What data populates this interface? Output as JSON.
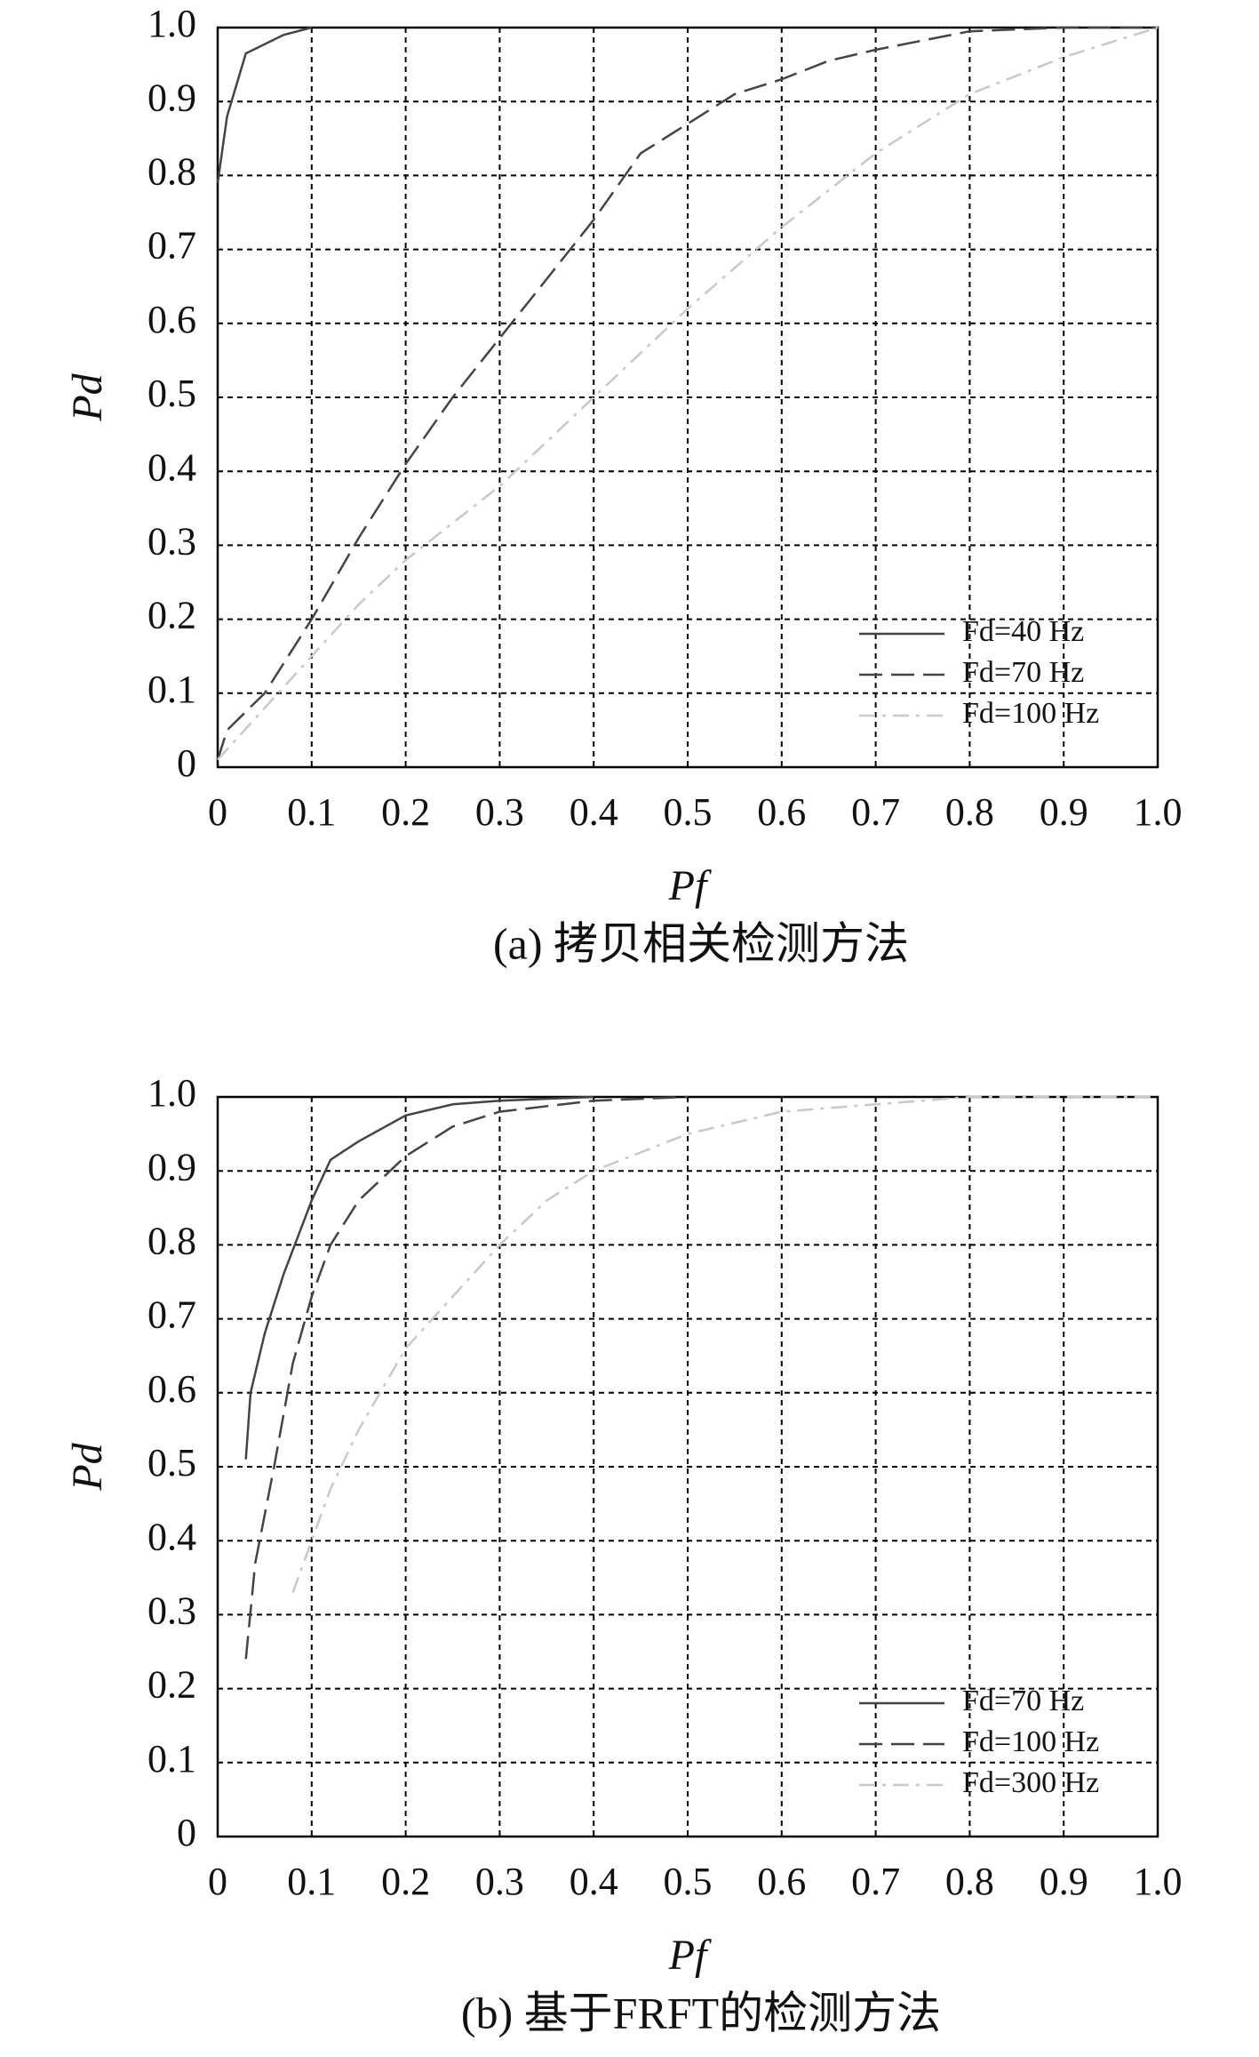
{
  "chart_data": [
    {
      "type": "line",
      "caption": "(a) 拷贝相关检测方法",
      "x_label": "Pf",
      "y_label": "Pd",
      "xlim": [
        0,
        1
      ],
      "ylim": [
        0,
        1
      ],
      "xticks": [
        0,
        0.1,
        0.2,
        0.3,
        0.4,
        0.5,
        0.6,
        0.7,
        0.8,
        0.9,
        {
          "value": 1,
          "label": "1.0"
        }
      ],
      "yticks": [
        0,
        0.1,
        0.2,
        0.3,
        0.4,
        0.5,
        0.6,
        0.7,
        0.8,
        0.9,
        {
          "value": 1,
          "label": "1.0"
        }
      ],
      "grid": true,
      "legend": "lower right",
      "series": [
        {
          "name": "Fd=40 Hz",
          "color": "#444444",
          "dash": "solid",
          "x": [
            0,
            0.01,
            0.03,
            0.07,
            0.1
          ],
          "values": [
            0.79,
            0.88,
            0.965,
            0.99,
            1.0
          ]
        },
        {
          "name": "Fd=70 Hz",
          "color": "#444444",
          "dash": "dashed",
          "x": [
            0,
            0.01,
            0.05,
            0.1,
            0.15,
            0.2,
            0.25,
            0.3,
            0.35,
            0.4,
            0.45,
            0.5,
            0.55,
            0.6,
            0.65,
            0.7,
            0.8,
            0.9,
            1.0
          ],
          "values": [
            0.01,
            0.05,
            0.1,
            0.2,
            0.31,
            0.41,
            0.5,
            0.58,
            0.66,
            0.74,
            0.83,
            0.87,
            0.91,
            0.93,
            0.955,
            0.97,
            0.995,
            1.0,
            1.0
          ]
        },
        {
          "name": "Fd=100 Hz",
          "color": "#c8c8c8",
          "dash": "dashdot",
          "x": [
            0,
            0.05,
            0.1,
            0.15,
            0.2,
            0.25,
            0.3,
            0.35,
            0.4,
            0.5,
            0.6,
            0.7,
            0.8,
            0.9,
            1.0
          ],
          "values": [
            0.01,
            0.08,
            0.15,
            0.22,
            0.28,
            0.33,
            0.38,
            0.44,
            0.5,
            0.62,
            0.73,
            0.83,
            0.91,
            0.96,
            1.0
          ]
        }
      ]
    },
    {
      "type": "line",
      "caption": "(b) 基于FRFT的检测方法",
      "x_label": "Pf",
      "y_label": "Pd",
      "xlim": [
        0,
        1
      ],
      "ylim": [
        0,
        1
      ],
      "xticks": [
        0,
        0.1,
        0.2,
        0.3,
        0.4,
        0.5,
        0.6,
        0.7,
        0.8,
        0.9,
        {
          "value": 1,
          "label": "1.0"
        }
      ],
      "yticks": [
        0,
        0.1,
        0.2,
        0.3,
        0.4,
        0.5,
        0.6,
        0.7,
        0.8,
        0.9,
        {
          "value": 1,
          "label": "1.0"
        }
      ],
      "grid": true,
      "legend": "lower right",
      "series": [
        {
          "name": "Fd=70 Hz",
          "color": "#444444",
          "dash": "solid",
          "x": [
            0.03,
            0.035,
            0.05,
            0.07,
            0.1,
            0.12,
            0.15,
            0.2,
            0.25,
            0.3,
            0.4
          ],
          "values": [
            0.51,
            0.6,
            0.68,
            0.76,
            0.86,
            0.915,
            0.94,
            0.975,
            0.99,
            0.995,
            1.0
          ]
        },
        {
          "name": "Fd=100 Hz",
          "color": "#444444",
          "dash": "dashed",
          "x": [
            0.03,
            0.04,
            0.06,
            0.08,
            0.1,
            0.12,
            0.15,
            0.2,
            0.25,
            0.3,
            0.4,
            0.5
          ],
          "values": [
            0.24,
            0.37,
            0.5,
            0.64,
            0.73,
            0.8,
            0.86,
            0.92,
            0.96,
            0.98,
            0.995,
            1.0
          ]
        },
        {
          "name": "Fd=300 Hz",
          "color": "#c8c8c8",
          "dash": "dashdot",
          "x": [
            0.08,
            0.1,
            0.12,
            0.15,
            0.2,
            0.25,
            0.3,
            0.35,
            0.4,
            0.5,
            0.6,
            0.7,
            0.8,
            1.0
          ],
          "values": [
            0.33,
            0.4,
            0.47,
            0.55,
            0.66,
            0.73,
            0.8,
            0.86,
            0.9,
            0.95,
            0.98,
            0.99,
            1.0,
            1.0
          ]
        }
      ]
    }
  ]
}
